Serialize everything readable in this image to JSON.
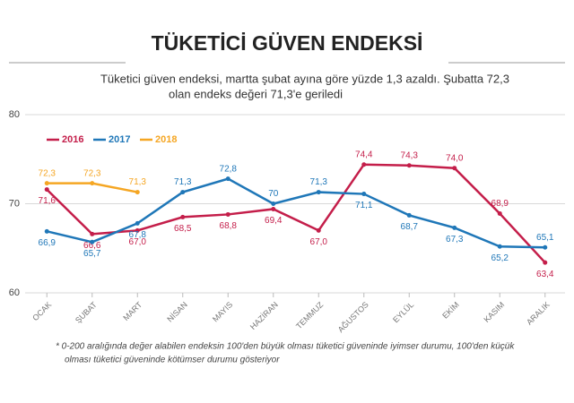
{
  "chart_data": {
    "type": "line",
    "title": "TÜKETİCİ GÜVEN ENDEKSİ",
    "subtitle": [
      "Tüketici güven endeksi, martta şubat ayına göre yüzde 1,3 azaldı. Şubatta 72,3",
      "olan endeks değeri 71,3'e geriledi"
    ],
    "footnote": [
      "* 0-200 aralığında değer alabilen endeksin 100'den büyük olması tüketici güveninde iyimser durumu, 100'den küçük",
      "olması tüketici güveninde kötümser durumu gösteriyor"
    ],
    "categories": [
      "OCAK",
      "ŞUBAT",
      "MART",
      "NİSAN",
      "MAYIS",
      "HAZİRAN",
      "TEMMUZ",
      "AĞUSTOS",
      "EYLÜL",
      "EKİM",
      "KASIM",
      "ARALIK"
    ],
    "series": [
      {
        "name": "2016",
        "color": "#c41e4a",
        "values": [
          71.6,
          66.6,
          67.0,
          68.5,
          68.8,
          69.4,
          67.0,
          74.4,
          74.3,
          74.0,
          68.9,
          63.4
        ],
        "value_labels": [
          "71,6",
          "66,6",
          "67,0",
          "68,5",
          "68,8",
          "69,4",
          "67,0",
          "74,4",
          "74,3",
          "74,0",
          "68,9",
          "63,4"
        ]
      },
      {
        "name": "2017",
        "color": "#1f77b8",
        "values": [
          66.9,
          65.7,
          67.8,
          71.3,
          72.8,
          70,
          71.3,
          71.1,
          68.7,
          67.3,
          65.2,
          65.1
        ],
        "value_labels": [
          "66,9",
          "65,7",
          "67,8",
          "71,3",
          "72,8",
          "70",
          "71,3",
          "71,1",
          "68,7",
          "67,3",
          "65,2",
          "65,1"
        ]
      },
      {
        "name": "2018",
        "color": "#f5a623",
        "values": [
          72.3,
          72.3,
          71.3,
          null,
          null,
          null,
          null,
          null,
          null,
          null,
          null,
          null
        ],
        "value_labels": [
          "72,3",
          "72,3",
          "71,3",
          null,
          null,
          null,
          null,
          null,
          null,
          null,
          null,
          null
        ]
      }
    ],
    "ylim": [
      60,
      80
    ],
    "yticks": [
      60,
      70,
      80
    ],
    "grid": true
  }
}
